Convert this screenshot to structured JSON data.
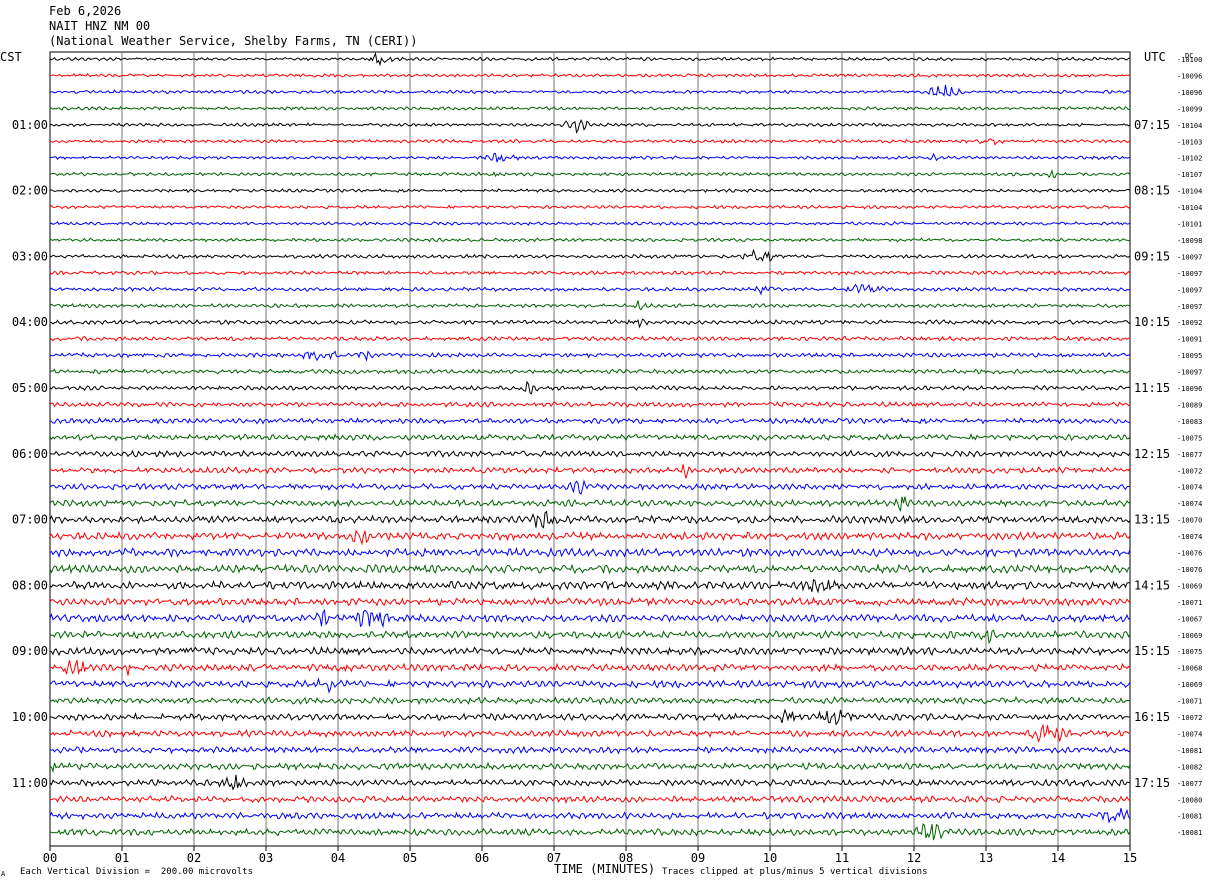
{
  "header": {
    "date": "Feb 6,2026",
    "station": "NAIT HNZ NM 00",
    "source": "(National Weather Service, Shelby Farms, TN (CERI))"
  },
  "left_tz": "CST",
  "right_tz": "UTC",
  "dc_label": "DC",
  "footer": {
    "scale_note": "Each Vertical Division =  200.00 microvolts",
    "clip_note": "Traces clipped at plus/minus 5 vertical divisions",
    "small_mark": "A"
  },
  "colors": {
    "black": "#000000",
    "red": "#ff0000",
    "blue": "#0000ff",
    "green": "#006400"
  },
  "chart_data": {
    "type": "line",
    "xlabel": "TIME (MINUTES)",
    "xlim": [
      0,
      15
    ],
    "x_ticks": [
      "00",
      "01",
      "02",
      "03",
      "04",
      "05",
      "06",
      "07",
      "08",
      "09",
      "10",
      "11",
      "12",
      "13",
      "14",
      "15"
    ],
    "trace_colors": [
      "black",
      "red",
      "blue",
      "green"
    ],
    "left_hour_labels": [
      "01:00",
      "02:00",
      "03:00",
      "04:00",
      "05:00",
      "06:00",
      "07:00",
      "08:00",
      "09:00",
      "10:00",
      "11:00"
    ],
    "right_hour_labels": [
      "07:15",
      "08:15",
      "09:15",
      "10:15",
      "11:15",
      "12:15",
      "13:15",
      "14:15",
      "15:15",
      "16:15",
      "17:15"
    ],
    "dc_offsets": [
      "-10100",
      "-10096",
      "-10096",
      "-10099",
      "-10104",
      "-10103",
      "-10102",
      "-10107",
      "-10104",
      "-10104",
      "-10101",
      "-10098",
      "-10097",
      "-10097",
      "-10097",
      "-10097",
      "-10092",
      "-10091",
      "-10095",
      "-10097",
      "-10096",
      "-10089",
      "-10083",
      "-10075",
      "-10077",
      "-10072",
      "-10074",
      "-10074",
      "-10070",
      "-10074",
      "-10076",
      "-10076",
      "-10069",
      "-10071",
      "-10067",
      "-10069",
      "-10075",
      "-10068",
      "-10069",
      "-10071",
      "-10072",
      "-10074",
      "-10081",
      "-10082",
      "-10077",
      "-10080",
      "-10081",
      "-10081"
    ],
    "trace_amplitude_levels": [
      0.3,
      0.3,
      0.3,
      0.3,
      0.3,
      0.3,
      0.3,
      0.3,
      0.3,
      0.3,
      0.3,
      0.3,
      0.35,
      0.35,
      0.35,
      0.35,
      0.4,
      0.4,
      0.4,
      0.4,
      0.4,
      0.45,
      0.5,
      0.55,
      0.55,
      0.55,
      0.55,
      0.6,
      0.7,
      0.7,
      0.75,
      0.75,
      0.75,
      0.7,
      0.7,
      0.7,
      0.7,
      0.65,
      0.65,
      0.6,
      0.6,
      0.6,
      0.6,
      0.6,
      0.6,
      0.6,
      0.6,
      0.6
    ]
  }
}
